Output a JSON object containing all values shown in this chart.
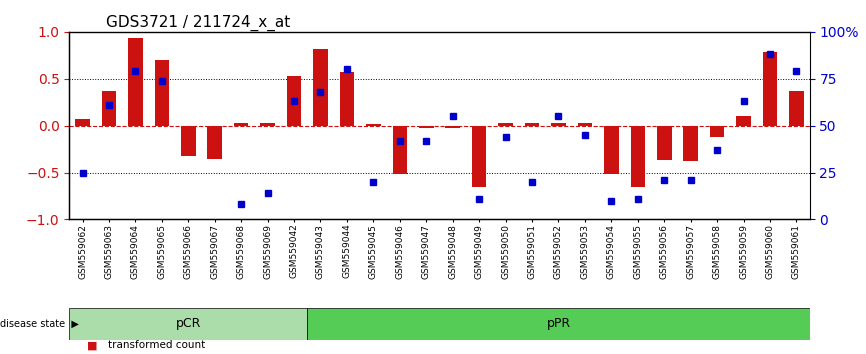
{
  "title": "GDS3721 / 211724_x_at",
  "samples": [
    "GSM559062",
    "GSM559063",
    "GSM559064",
    "GSM559065",
    "GSM559066",
    "GSM559067",
    "GSM559068",
    "GSM559069",
    "GSM559042",
    "GSM559043",
    "GSM559044",
    "GSM559045",
    "GSM559046",
    "GSM559047",
    "GSM559048",
    "GSM559049",
    "GSM559050",
    "GSM559051",
    "GSM559052",
    "GSM559053",
    "GSM559054",
    "GSM559055",
    "GSM559056",
    "GSM559057",
    "GSM559058",
    "GSM559059",
    "GSM559060",
    "GSM559061"
  ],
  "transformed_count": [
    0.07,
    0.37,
    0.93,
    0.7,
    -0.32,
    -0.35,
    0.03,
    0.03,
    0.53,
    0.82,
    0.57,
    0.02,
    -0.52,
    -0.02,
    -0.03,
    -0.65,
    0.03,
    0.03,
    0.03,
    0.03,
    -0.52,
    -0.65,
    -0.37,
    -0.38,
    -0.12,
    0.1,
    0.78,
    0.37
  ],
  "percentile_rank": [
    0.25,
    0.61,
    0.79,
    0.74,
    null,
    null,
    0.08,
    0.14,
    0.63,
    0.68,
    0.8,
    0.2,
    0.42,
    0.42,
    0.55,
    0.11,
    0.44,
    0.2,
    0.55,
    0.45,
    0.1,
    0.11,
    0.21,
    0.21,
    0.37,
    0.63,
    0.88,
    0.79
  ],
  "pCR_count": 9,
  "pPR_count": 19,
  "bar_color": "#cc1111",
  "dot_color": "#0000cc",
  "pCR_color": "#aaddaa",
  "pPR_color": "#55cc55",
  "zero_line_color": "#cc1111",
  "grid_line_color": "#000000",
  "ylim": [
    -1.0,
    1.0
  ],
  "yticks": [
    -1.0,
    -0.5,
    0.0,
    0.5,
    1.0
  ],
  "right_yticks": [
    0,
    25,
    50,
    75,
    100
  ],
  "right_ytick_labels": [
    "0",
    "25",
    "50",
    "75",
    "100%"
  ]
}
